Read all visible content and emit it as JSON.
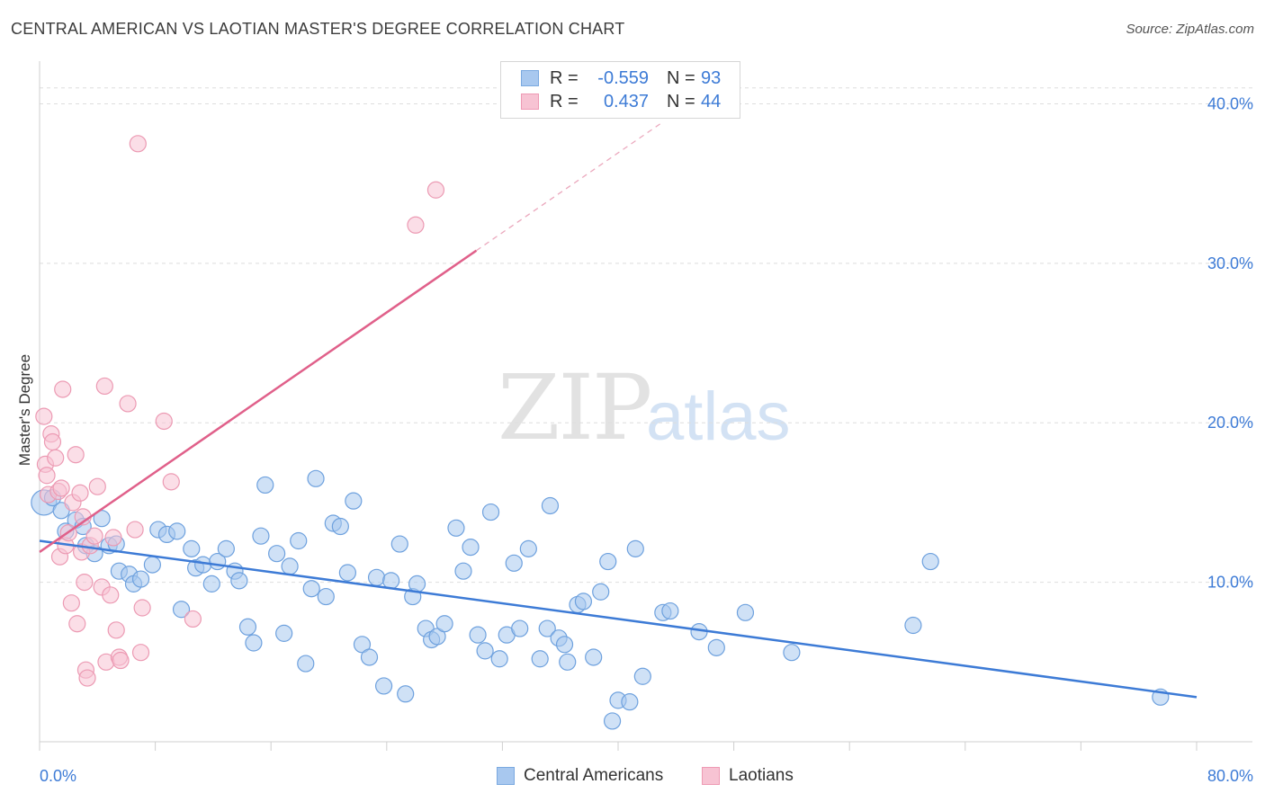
{
  "title": "CENTRAL AMERICAN VS LAOTIAN MASTER'S DEGREE CORRELATION CHART",
  "source": "Source: ZipAtlas.com",
  "watermark": {
    "zip": "ZIP",
    "atlas": "atlas"
  },
  "legend": {
    "rows": [
      {
        "r_label": "R =",
        "r_value": "-0.559",
        "n_label": "N =",
        "n_value": "93",
        "color": "#a8c8ef",
        "border": "#7aa9e0"
      },
      {
        "r_label": "R =",
        "r_value": "0.437",
        "n_label": "N =",
        "n_value": "44",
        "color": "#f7c3d3",
        "border": "#ee9ab4"
      }
    ]
  },
  "bottom_legend": {
    "central": "Central Americans",
    "laotian": "Laotians"
  },
  "chart_data": {
    "type": "scatter",
    "title": "CENTRAL AMERICAN VS LAOTIAN MASTER'S DEGREE CORRELATION CHART",
    "xlabel": "",
    "ylabel": "Master's Degree",
    "xlim": [
      0,
      80
    ],
    "ylim": [
      0,
      42
    ],
    "x_tick_labels": [
      "0.0%",
      "80.0%"
    ],
    "y_tick_labels": [
      "10.0%",
      "20.0%",
      "30.0%",
      "40.0%"
    ],
    "y_ticks": [
      10,
      20,
      30,
      40
    ],
    "grid": true,
    "colors": {
      "central": "#3d7bd6",
      "laotian": "#e0608a",
      "central_fill": "#a8c8ef",
      "laotian_fill": "#f7c3d3"
    },
    "series": [
      {
        "name": "Central Americans",
        "trend": [
          [
            0,
            12.6
          ],
          [
            80,
            2.8
          ]
        ],
        "points": [
          [
            0.3,
            15.0
          ],
          [
            1.5,
            14.5
          ],
          [
            1.8,
            13.2
          ],
          [
            2.5,
            13.9
          ],
          [
            3.0,
            13.5
          ],
          [
            3.2,
            12.3
          ],
          [
            3.8,
            11.8
          ],
          [
            4.3,
            14.0
          ],
          [
            4.8,
            12.3
          ],
          [
            5.3,
            12.4
          ],
          [
            5.5,
            10.7
          ],
          [
            6.2,
            10.5
          ],
          [
            6.5,
            9.9
          ],
          [
            7.0,
            10.2
          ],
          [
            7.8,
            11.1
          ],
          [
            8.2,
            13.3
          ],
          [
            8.8,
            13.0
          ],
          [
            9.5,
            13.2
          ],
          [
            9.8,
            8.3
          ],
          [
            10.5,
            12.1
          ],
          [
            10.8,
            10.9
          ],
          [
            11.3,
            11.1
          ],
          [
            11.9,
            9.9
          ],
          [
            12.3,
            11.3
          ],
          [
            12.9,
            12.1
          ],
          [
            13.5,
            10.7
          ],
          [
            13.8,
            10.1
          ],
          [
            14.4,
            7.2
          ],
          [
            14.8,
            6.2
          ],
          [
            15.3,
            12.9
          ],
          [
            15.6,
            16.1
          ],
          [
            16.4,
            11.8
          ],
          [
            16.9,
            6.8
          ],
          [
            17.3,
            11.0
          ],
          [
            17.9,
            12.6
          ],
          [
            18.4,
            4.9
          ],
          [
            18.8,
            9.6
          ],
          [
            19.1,
            16.5
          ],
          [
            19.8,
            9.1
          ],
          [
            20.3,
            13.7
          ],
          [
            20.8,
            13.5
          ],
          [
            21.3,
            10.6
          ],
          [
            21.7,
            15.1
          ],
          [
            22.3,
            6.1
          ],
          [
            22.8,
            5.3
          ],
          [
            23.3,
            10.3
          ],
          [
            23.8,
            3.5
          ],
          [
            24.3,
            10.1
          ],
          [
            24.9,
            12.4
          ],
          [
            25.3,
            3.0
          ],
          [
            25.8,
            9.1
          ],
          [
            26.1,
            9.9
          ],
          [
            26.7,
            7.1
          ],
          [
            27.1,
            6.4
          ],
          [
            27.5,
            6.6
          ],
          [
            28.0,
            7.4
          ],
          [
            28.8,
            13.4
          ],
          [
            29.3,
            10.7
          ],
          [
            29.8,
            12.2
          ],
          [
            30.3,
            6.7
          ],
          [
            30.8,
            5.7
          ],
          [
            31.2,
            14.4
          ],
          [
            31.8,
            5.2
          ],
          [
            32.3,
            6.7
          ],
          [
            32.8,
            11.2
          ],
          [
            33.2,
            7.1
          ],
          [
            33.8,
            12.1
          ],
          [
            34.6,
            5.2
          ],
          [
            35.1,
            7.1
          ],
          [
            35.3,
            14.8
          ],
          [
            35.9,
            6.5
          ],
          [
            36.3,
            6.1
          ],
          [
            36.5,
            5.0
          ],
          [
            37.2,
            8.6
          ],
          [
            37.6,
            8.8
          ],
          [
            38.3,
            5.3
          ],
          [
            38.8,
            9.4
          ],
          [
            39.3,
            11.3
          ],
          [
            39.6,
            1.3
          ],
          [
            40.0,
            2.6
          ],
          [
            40.8,
            2.5
          ],
          [
            41.2,
            12.1
          ],
          [
            41.7,
            4.1
          ],
          [
            43.1,
            8.1
          ],
          [
            43.6,
            8.2
          ],
          [
            45.6,
            6.9
          ],
          [
            46.8,
            5.9
          ],
          [
            48.8,
            8.1
          ],
          [
            52.0,
            5.6
          ],
          [
            60.4,
            7.3
          ],
          [
            61.6,
            11.3
          ],
          [
            77.5,
            2.8
          ],
          [
            0.9,
            15.3
          ]
        ]
      },
      {
        "name": "Laotians",
        "trend": [
          [
            0,
            11.9
          ],
          [
            30.2,
            30.8
          ]
        ],
        "trend_dashed": [
          [
            30.2,
            30.8
          ],
          [
            43,
            38.8
          ]
        ],
        "points": [
          [
            0.3,
            20.4
          ],
          [
            0.4,
            17.4
          ],
          [
            0.5,
            16.7
          ],
          [
            0.6,
            15.5
          ],
          [
            0.8,
            19.3
          ],
          [
            0.9,
            18.8
          ],
          [
            1.1,
            17.8
          ],
          [
            1.3,
            15.7
          ],
          [
            1.4,
            11.6
          ],
          [
            1.5,
            15.9
          ],
          [
            1.6,
            22.1
          ],
          [
            1.8,
            12.3
          ],
          [
            2.0,
            13.1
          ],
          [
            2.2,
            8.7
          ],
          [
            2.3,
            15.0
          ],
          [
            2.5,
            18.0
          ],
          [
            2.6,
            7.4
          ],
          [
            2.8,
            15.6
          ],
          [
            2.9,
            11.9
          ],
          [
            3.0,
            14.1
          ],
          [
            3.1,
            10.0
          ],
          [
            3.2,
            4.5
          ],
          [
            3.3,
            4.0
          ],
          [
            3.5,
            12.3
          ],
          [
            3.8,
            12.9
          ],
          [
            4.0,
            16.0
          ],
          [
            4.3,
            9.7
          ],
          [
            4.5,
            22.3
          ],
          [
            4.6,
            5.0
          ],
          [
            4.9,
            9.2
          ],
          [
            5.1,
            12.8
          ],
          [
            5.3,
            7.0
          ],
          [
            5.5,
            5.3
          ],
          [
            5.6,
            5.1
          ],
          [
            6.1,
            21.2
          ],
          [
            6.6,
            13.3
          ],
          [
            6.8,
            37.5
          ],
          [
            7.0,
            5.6
          ],
          [
            7.1,
            8.4
          ],
          [
            8.6,
            20.1
          ],
          [
            9.1,
            16.3
          ],
          [
            10.6,
            7.7
          ],
          [
            26.0,
            32.4
          ],
          [
            27.4,
            34.6
          ]
        ]
      }
    ]
  }
}
